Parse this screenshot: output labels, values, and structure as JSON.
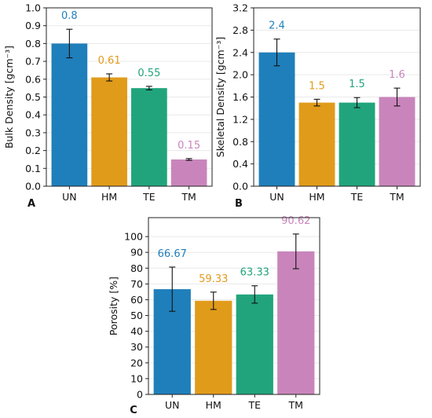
{
  "colors": {
    "UN": "#1f7fbb",
    "HM": "#e19b1b",
    "TE": "#21a47c",
    "TM": "#c985bb",
    "grid": "#e9e9e9",
    "axis": "#222222"
  },
  "chart_data": [
    {
      "type": "bar",
      "panel": "A",
      "ylabel": "Bulk Density [gcm⁻³]",
      "ylim": [
        0,
        1.0
      ],
      "yticks": [
        0.0,
        0.1,
        0.2,
        0.3,
        0.4,
        0.5,
        0.6,
        0.7,
        0.8,
        0.9,
        1.0
      ],
      "yticklabels": [
        "0.0",
        "0.1",
        "0.2",
        "0.3",
        "0.4",
        "0.5",
        "0.6",
        "0.7",
        "0.8",
        "0.9",
        "1.0"
      ],
      "categories": [
        "UN",
        "HM",
        "TE",
        "TM"
      ],
      "values": [
        0.8,
        0.61,
        0.55,
        0.15
      ],
      "errors": [
        0.08,
        0.02,
        0.01,
        0.005
      ],
      "data_labels": [
        "0.8",
        "0.61",
        "0.55",
        "0.15"
      ],
      "grid": true
    },
    {
      "type": "bar",
      "panel": "B",
      "ylabel": "Skeletal Density [gcm⁻³]",
      "ylim": [
        0,
        3.2
      ],
      "yticks": [
        0.0,
        0.4,
        0.8,
        1.2,
        1.6,
        2.0,
        2.4,
        2.8,
        3.2
      ],
      "yticklabels": [
        "0.0",
        "0.4",
        "0.8",
        "1.2",
        "1.6",
        "2.0",
        "2.4",
        "2.8",
        "3.2"
      ],
      "categories": [
        "UN",
        "HM",
        "TE",
        "TM"
      ],
      "values": [
        2.4,
        1.5,
        1.5,
        1.6
      ],
      "errors": [
        0.24,
        0.06,
        0.09,
        0.16
      ],
      "data_labels": [
        "2.4",
        "1.5",
        "1.5",
        "1.6"
      ],
      "grid": true
    },
    {
      "type": "bar",
      "panel": "C",
      "ylabel": "Porosity [%]",
      "ylim": [
        0,
        112
      ],
      "yticks": [
        0,
        10,
        20,
        30,
        40,
        50,
        60,
        70,
        80,
        90,
        100
      ],
      "yticklabels": [
        "0",
        "10",
        "20",
        "30",
        "40",
        "50",
        "60",
        "70",
        "80",
        "90",
        "100"
      ],
      "categories": [
        "UN",
        "HM",
        "TE",
        "TM"
      ],
      "values": [
        66.67,
        59.33,
        63.33,
        90.62
      ],
      "errors": [
        14,
        5.5,
        5.5,
        11
      ],
      "data_labels": [
        "66.67",
        "59.33",
        "63.33",
        "90.62"
      ],
      "grid": true
    }
  ]
}
